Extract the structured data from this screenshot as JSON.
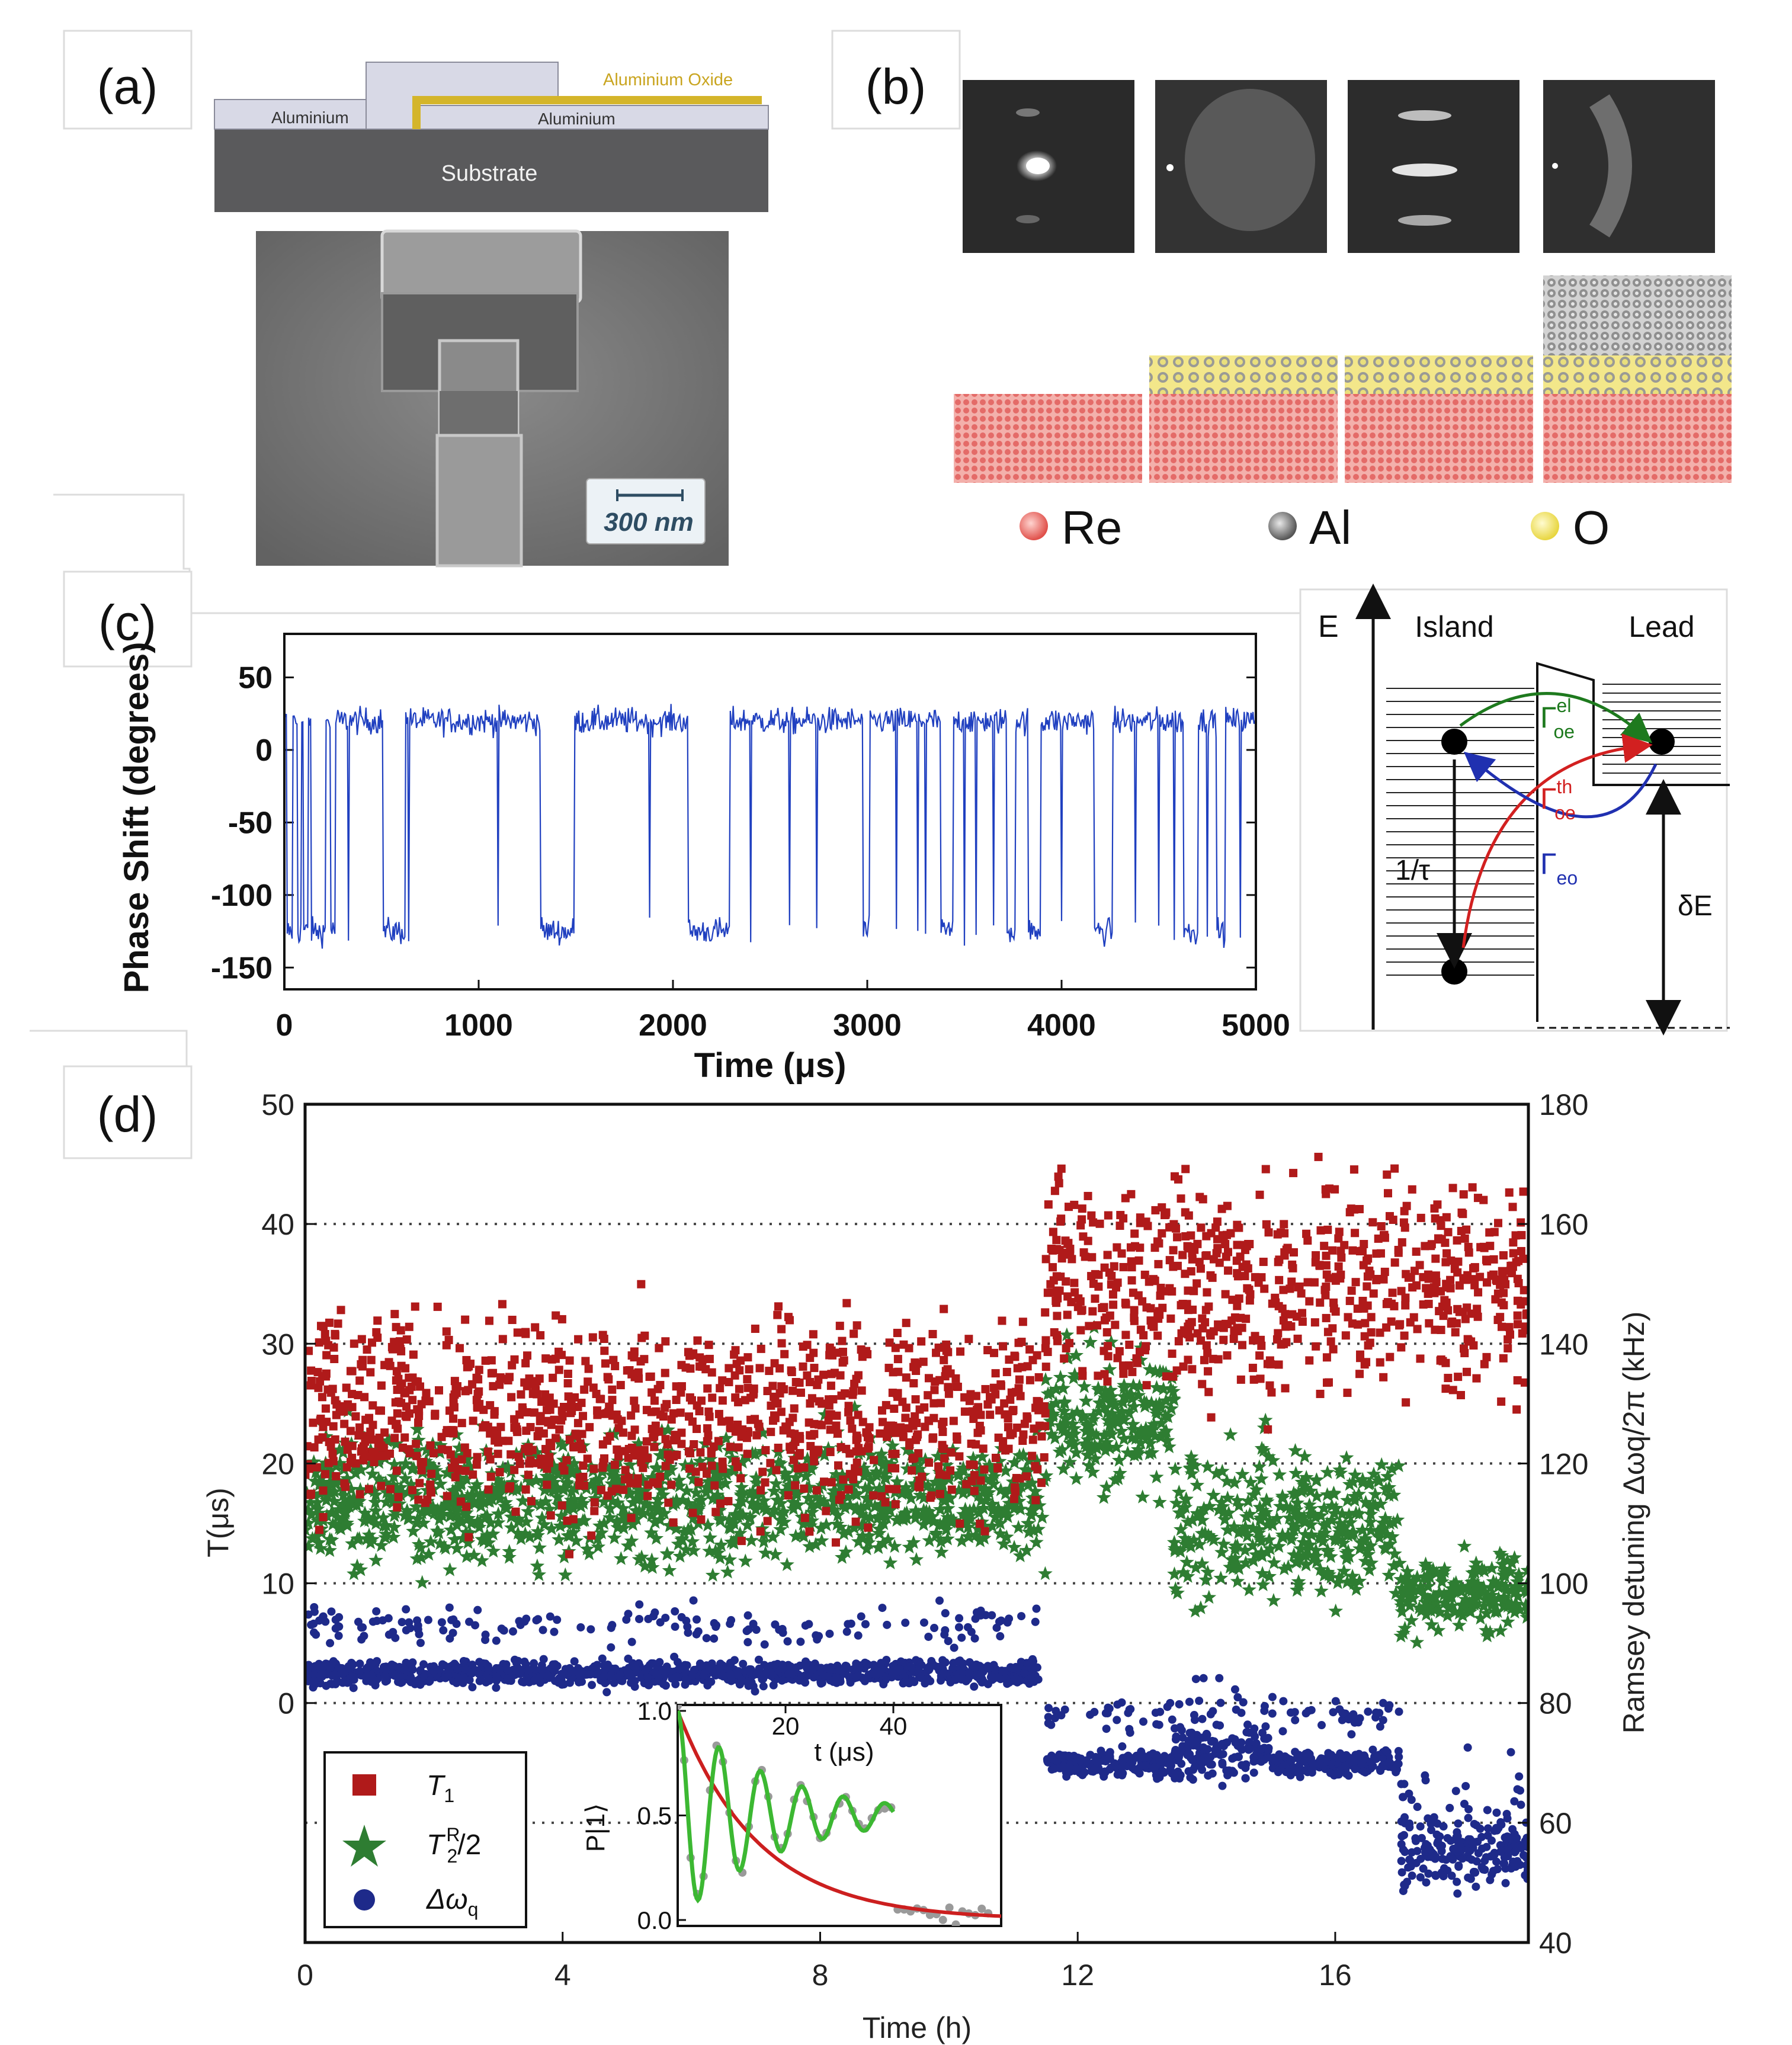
{
  "panel_labels": {
    "a": "(a)",
    "b": "(b)",
    "c": "(c)",
    "d": "(d)"
  },
  "panel_a": {
    "layers": {
      "oxide": "Aluminium Oxide",
      "aluminium_left": "Aluminium",
      "aluminium_right": "Aluminium",
      "substrate": "Substrate"
    },
    "scale_bar": "300 nm",
    "colors": {
      "oxide": "#d4b52a",
      "aluminium": "#d8d9e6",
      "substrate": "#5a5a5c"
    }
  },
  "panel_b": {
    "legend": [
      {
        "label": "Re",
        "color": "#f08080"
      },
      {
        "label": "Al",
        "color": "#777777"
      },
      {
        "label": "O",
        "color": "#f0e060"
      }
    ]
  },
  "panel_c_diagram": {
    "axis_label": "E",
    "island": "Island",
    "lead": "Lead",
    "rate_el": {
      "symbol": "Γ",
      "sup": "el",
      "sub": "oe",
      "color": "#1e7a1e"
    },
    "rate_th": {
      "symbol": "Γ",
      "sup": "th",
      "sub": "oe",
      "color": "#d22020"
    },
    "rate_eo": {
      "symbol": "Γ",
      "sub": "eo",
      "color": "#2030b0"
    },
    "relax": "1/τ",
    "gap": "δE"
  },
  "chart_data": [
    {
      "id": "panel-c-trace",
      "type": "line",
      "title": "",
      "xlabel": "Time (μs)",
      "ylabel": "Phase Shift (degrees)",
      "xlim": [
        0,
        5000
      ],
      "ylim": [
        -165,
        80
      ],
      "xticks": [
        0,
        1000,
        2000,
        3000,
        4000,
        5000
      ],
      "yticks": [
        50,
        0,
        -50,
        -100,
        -150
      ],
      "series": [
        {
          "name": "phase",
          "color": "#2040c0",
          "levels": {
            "high": 20,
            "low": -125,
            "noise": 9
          },
          "low_intervals": [
            [
              15,
              40
            ],
            [
              70,
              85
            ],
            [
              100,
              120
            ],
            [
              140,
              210
            ],
            [
              240,
              260
            ],
            [
              510,
              620
            ],
            [
              1320,
              1490
            ],
            [
              2080,
              2290
            ],
            [
              2980,
              3010
            ],
            [
              3380,
              3440
            ],
            [
              3720,
              3760
            ],
            [
              3830,
              3890
            ],
            [
              4170,
              4260
            ],
            [
              4630,
              4700
            ],
            [
              4800,
              4840
            ]
          ],
          "spikes": [
            180,
            330,
            640,
            1100,
            1880,
            2400,
            2600,
            2740,
            3150,
            3260,
            3300,
            3500,
            3560,
            3650,
            4000,
            4380,
            4500,
            4580,
            4750,
            4920
          ]
        }
      ]
    },
    {
      "id": "panel-d-main",
      "type": "scatter",
      "xlabel": "Time (h)",
      "ylabel_left": "T(μs)",
      "ylabel_right": "Ramsey detuning Δωq/2π (kHz)",
      "xlim": [
        0,
        19
      ],
      "ylim_left": [
        -20,
        50
      ],
      "ylim_right": [
        40,
        180
      ],
      "xticks": [
        0,
        4,
        8,
        12,
        16
      ],
      "yticks_left": [
        0,
        10,
        20,
        30,
        40,
        50
      ],
      "yticks_right": [
        40,
        60,
        80,
        100,
        120,
        140,
        160,
        180
      ],
      "gridlines_right": [
        60,
        80,
        100,
        120,
        140,
        160
      ],
      "series": [
        {
          "name": "T1",
          "axis": "left",
          "color": "#b01a1a",
          "marker": "square",
          "segments": [
            {
              "t": [
                0,
                11.5
              ],
              "mean": 24,
              "spread": 8
            },
            {
              "t": [
                11.5,
                19
              ],
              "mean": 35,
              "spread": 9
            }
          ]
        },
        {
          "name": "T2R/2",
          "axis": "left",
          "color": "#2e7d32",
          "marker": "star",
          "segments": [
            {
              "t": [
                0,
                11.5
              ],
              "mean": 17,
              "spread": 5
            },
            {
              "t": [
                11.5,
                13.5
              ],
              "mean": 24,
              "spread": 6
            },
            {
              "t": [
                13.5,
                17
              ],
              "mean": 15,
              "spread": 6
            },
            {
              "t": [
                17,
                19
              ],
              "mean": 9,
              "spread": 3
            }
          ]
        },
        {
          "name": "Δωq",
          "axis": "right",
          "color": "#1e2a8a",
          "marker": "circle",
          "segments": [
            {
              "t": [
                0,
                11.4
              ],
              "mean": 85,
              "spread": 2
            },
            {
              "t": [
                11.5,
                13.5
              ],
              "mean": 70,
              "spread": 2
            },
            {
              "t": [
                13.5,
                15
              ],
              "mean": 72,
              "spread": 5
            },
            {
              "t": [
                15,
                17
              ],
              "mean": 70,
              "spread": 2
            },
            {
              "t": [
                17,
                19
              ],
              "mean": 55,
              "spread": 6
            }
          ]
        }
      ],
      "legend": [
        {
          "label": "T",
          "sub": "1",
          "marker": "square",
          "color": "#b01a1a"
        },
        {
          "label": "T",
          "sub": "2",
          "sup": "R",
          "suffix": "/2",
          "marker": "star",
          "color": "#2e7d32"
        },
        {
          "label": "Δω",
          "sub": "q",
          "marker": "circle",
          "color": "#1e2a8a"
        }
      ]
    },
    {
      "id": "panel-d-inset",
      "type": "line",
      "xlabel": "t (μs)",
      "ylabel": "P|1⟩",
      "xlim": [
        0,
        60
      ],
      "ylim": [
        0,
        1
      ],
      "xticks": [
        20,
        40
      ],
      "yticks": [
        0.0,
        0.5,
        1.0
      ],
      "series": [
        {
          "name": "data",
          "color": "#9a9a9a",
          "marker": "circle"
        },
        {
          "name": "T1 decay fit",
          "color": "#cc1f1f",
          "model": "exp",
          "tau": 15
        },
        {
          "name": "Ramsey fit",
          "color": "#3cb832",
          "model": "damped_cos",
          "tau": 18,
          "freq": 0.13,
          "t_max": 40
        }
      ]
    }
  ]
}
